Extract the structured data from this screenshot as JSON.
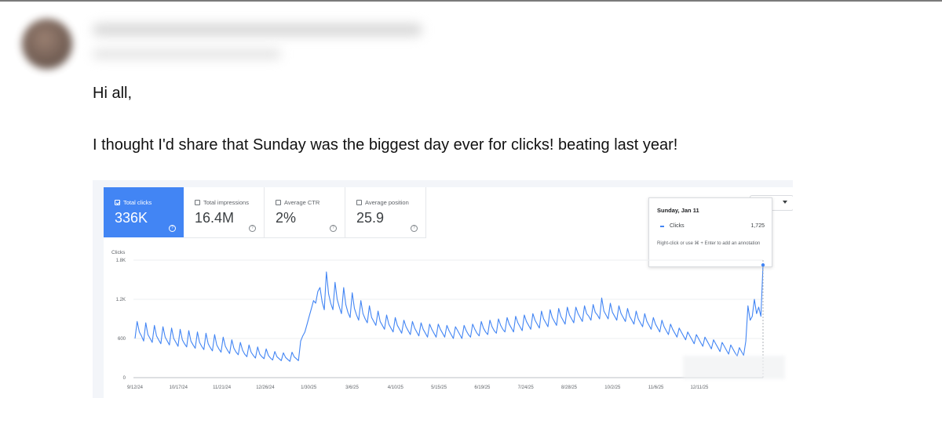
{
  "email": {
    "greeting": "Hi all,",
    "message": "I thought I'd share that Sunday was the biggest day ever for clicks! beating last year!"
  },
  "dashboard": {
    "cards": [
      {
        "label": "Total clicks",
        "value": "336K",
        "active": true
      },
      {
        "label": "Total impressions",
        "value": "16.4M",
        "active": false
      },
      {
        "label": "Average CTR",
        "value": "2%",
        "active": false
      },
      {
        "label": "Average position",
        "value": "25.9",
        "active": false
      }
    ],
    "help_glyph": "?",
    "tooltip": {
      "date": "Sunday, Jan 11",
      "series": "Clicks",
      "value": "1,725",
      "note": "Right-click or use ⌘ + Enter to add an annotation"
    },
    "dropdown_caret": "caret-down-icon"
  },
  "chart_data": {
    "type": "line",
    "ylabel": "Clicks",
    "ylim": [
      0,
      1800
    ],
    "y_ticks": [
      {
        "v": 0,
        "label": "0"
      },
      {
        "v": 600,
        "label": "600"
      },
      {
        "v": 1200,
        "label": "1.2K"
      },
      {
        "v": 1800,
        "label": "1.8K"
      }
    ],
    "x_tick_labels": [
      "9/12/24",
      "10/17/24",
      "11/21/24",
      "12/26/24",
      "1/30/25",
      "3/6/25",
      "4/10/25",
      "5/15/25",
      "6/19/25",
      "7/24/25",
      "8/28/25",
      "10/2/25",
      "11/6/25",
      "12/11/25"
    ],
    "line_color": "#4285f4",
    "series": [
      {
        "name": "Clicks",
        "values": [
          600,
          860,
          700,
          640,
          560,
          840,
          660,
          600,
          540,
          800,
          640,
          580,
          520,
          780,
          620,
          560,
          500,
          760,
          600,
          540,
          480,
          740,
          580,
          520,
          470,
          720,
          560,
          500,
          450,
          700,
          540,
          480,
          430,
          680,
          520,
          460,
          410,
          660,
          500,
          440,
          390,
          620,
          480,
          420,
          370,
          580,
          450,
          390,
          350,
          540,
          420,
          360,
          320,
          500,
          390,
          340,
          300,
          470,
          360,
          320,
          290,
          440,
          340,
          300,
          270,
          400,
          320,
          290,
          260,
          380,
          310,
          280,
          250,
          390,
          320,
          290,
          260,
          560,
          640,
          700,
          820,
          940,
          1060,
          1180,
          1140,
          1320,
          1380,
          1160,
          1040,
          1620,
          1280,
          1140,
          1040,
          1460,
          1200,
          1080,
          980,
          1380,
          1120,
          1000,
          920,
          1300,
          1060,
          960,
          880,
          1180,
          980,
          900,
          840,
          1100,
          920,
          860,
          800,
          1020,
          860,
          800,
          740,
          960,
          820,
          760,
          700,
          920,
          800,
          740,
          680,
          880,
          780,
          720,
          660,
          860,
          760,
          700,
          640,
          840,
          740,
          680,
          620,
          820,
          740,
          680,
          620,
          820,
          740,
          680,
          620,
          800,
          720,
          660,
          600,
          780,
          720,
          660,
          600,
          800,
          720,
          660,
          620,
          820,
          740,
          680,
          640,
          860,
          760,
          700,
          660,
          880,
          780,
          720,
          680,
          900,
          800,
          740,
          700,
          920,
          820,
          760,
          700,
          940,
          840,
          780,
          720,
          960,
          860,
          800,
          740,
          980,
          880,
          820,
          760,
          1020,
          900,
          840,
          780,
          1040,
          920,
          860,
          800,
          1060,
          940,
          880,
          820,
          1080,
          960,
          900,
          840,
          1080,
          980,
          920,
          860,
          1100,
          980,
          940,
          880,
          1120,
          1000,
          960,
          900,
          1220,
          1020,
          960,
          900,
          1140,
          1000,
          940,
          880,
          1100,
          980,
          920,
          860,
          1060,
          940,
          880,
          820,
          1020,
          900,
          840,
          780,
          980,
          860,
          800,
          740,
          920,
          820,
          760,
          700,
          880,
          780,
          720,
          660,
          820,
          740,
          680,
          620,
          760,
          700,
          640,
          580,
          700,
          640,
          580,
          520,
          660,
          600,
          540,
          480,
          620,
          560,
          500,
          440,
          580,
          520,
          460,
          400,
          540,
          480,
          420,
          360,
          500,
          440,
          380,
          330,
          460,
          400,
          340,
          560,
          1100,
          880,
          940,
          1200,
          980,
          1080,
          940,
          1725
        ]
      }
    ]
  }
}
